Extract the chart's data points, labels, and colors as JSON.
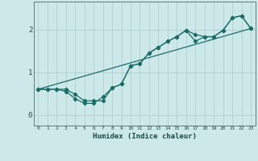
{
  "xlabel": "Humidex (Indice chaleur)",
  "bg_color": "#cce8e8",
  "grid_color": "#aacccc",
  "line_color": "#1a6e6a",
  "xlim": [
    -0.5,
    23.5
  ],
  "ylim": [
    -0.25,
    2.65
  ],
  "xticks": [
    0,
    1,
    2,
    3,
    4,
    5,
    6,
    7,
    8,
    9,
    10,
    11,
    12,
    13,
    14,
    15,
    16,
    17,
    18,
    19,
    20,
    21,
    22,
    23
  ],
  "yticks": [
    0,
    1,
    2
  ],
  "curve1_x": [
    0,
    1,
    2,
    3,
    4,
    5,
    6,
    7,
    8,
    9,
    10,
    11,
    12,
    13,
    14,
    15,
    16,
    17,
    18,
    19,
    20,
    21,
    22,
    23
  ],
  "curve1_y": [
    0.6,
    0.6,
    0.6,
    0.55,
    0.38,
    0.27,
    0.27,
    0.42,
    0.63,
    0.72,
    1.15,
    1.2,
    1.45,
    1.58,
    1.72,
    1.83,
    1.98,
    1.72,
    1.83,
    1.83,
    1.98,
    2.27,
    2.32,
    2.02
  ],
  "curve2_x": [
    0,
    1,
    2,
    3,
    4,
    5,
    6,
    7,
    8,
    9,
    10,
    11,
    12,
    13,
    14,
    15,
    16,
    17,
    18,
    19,
    20,
    21,
    22,
    23
  ],
  "curve2_y": [
    0.6,
    0.6,
    0.6,
    0.6,
    0.48,
    0.33,
    0.33,
    0.33,
    0.63,
    0.72,
    1.15,
    1.2,
    1.45,
    1.58,
    1.72,
    1.83,
    1.98,
    1.88,
    1.83,
    1.83,
    1.98,
    2.27,
    2.32,
    2.02
  ],
  "line_x": [
    0,
    23
  ],
  "line_y": [
    0.6,
    2.02
  ]
}
